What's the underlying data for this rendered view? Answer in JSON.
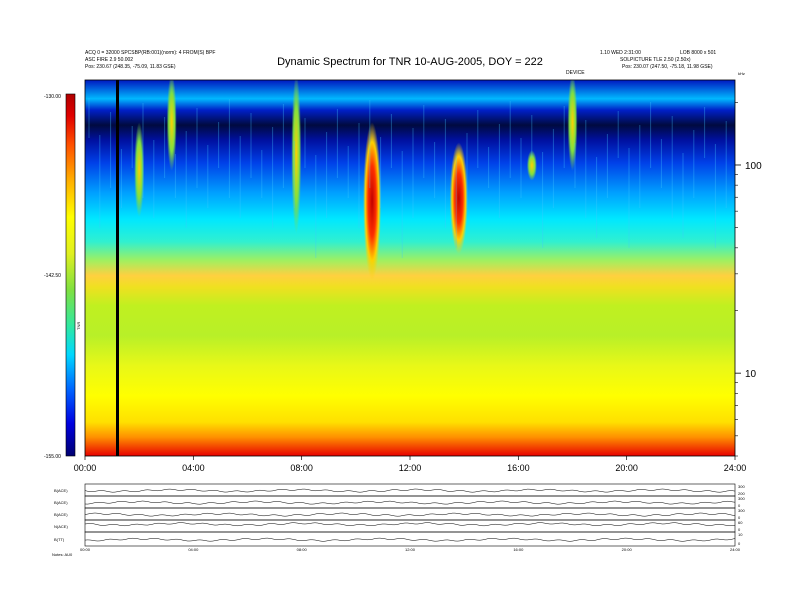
{
  "header": {
    "title": "Dynamic Spectrum for TNR 10-AUG-2005, DOY = 222",
    "left_line1": "ACQ 0 = 32000 SPCSBP(RB:001)(norm): 4 FROM(S) BPF",
    "left_line2": "ASC FIRE 2.9 50.002",
    "left_pos": "Pos:  230.67 (248.35, -75.09, 11.83 GSE)",
    "right_line1": "1.10 WED 2:31:00",
    "right_line2": "LOB 8000 x 501",
    "right_line3": "SOLPICTURE TLE 2.50 (2.50x)",
    "right_pos": "Pos:  230.07 (247.50, -75.18, 11.98 GSE)",
    "right_marker": "DEVICE",
    "freq_unit": "kHz"
  },
  "chart_data": [
    {
      "type": "heatmap",
      "title": "Dynamic Spectrum for TNR 10-AUG-2005, DOY = 222",
      "xlabel": "",
      "ylabel": "",
      "x_tick_labels": [
        "00:00",
        "04:00",
        "08:00",
        "12:00",
        "16:00",
        "20:00",
        "24:00"
      ],
      "x_range_hours": [
        0,
        24
      ],
      "y_scale": "log",
      "y_range_khz": [
        4,
        256
      ],
      "y_tick_labels": [
        "100",
        "10"
      ],
      "y_ticks_khz": [
        100,
        10
      ],
      "colorbar": {
        "label": "TNR",
        "tick_labels": [
          "-130.00",
          "-142.50",
          "-155.00"
        ],
        "min": -155.0,
        "max": -130.0,
        "colors": [
          "#000070",
          "#0000e0",
          "#0060ff",
          "#00d8ff",
          "#30e8a0",
          "#80e040",
          "#e0f020",
          "#ffff00",
          "#ffb000",
          "#ff5000",
          "#e00000",
          "#b00000"
        ]
      },
      "data_gap_hours": 1.2,
      "bursts": [
        {
          "t_hours": 10.6,
          "f_khz_range": [
            30,
            150
          ],
          "intensity": "high"
        },
        {
          "t_hours": 13.8,
          "f_khz_range": [
            40,
            120
          ],
          "intensity": "high"
        },
        {
          "t_hours": 2.0,
          "f_khz_range": [
            60,
            150
          ],
          "intensity": "medium"
        },
        {
          "t_hours": 3.2,
          "f_khz_range": [
            100,
            256
          ],
          "intensity": "medium"
        },
        {
          "t_hours": 7.8,
          "f_khz_range": [
            50,
            256
          ],
          "intensity": "medium"
        },
        {
          "t_hours": 16.5,
          "f_khz_range": [
            90,
            110
          ],
          "intensity": "medium"
        },
        {
          "t_hours": 18.0,
          "f_khz_range": [
            100,
            256
          ],
          "intensity": "medium"
        }
      ]
    },
    {
      "type": "line",
      "x_tick_labels": [
        "00:00",
        "04:00",
        "08:00",
        "12:00",
        "16:00",
        "20:00",
        "24:00"
      ],
      "panels": [
        {
          "label": "B(ACE)",
          "right_ticks": [
            "300",
            "200"
          ]
        },
        {
          "label": "B(ACE)",
          "right_ticks": [
            "300",
            "0"
          ]
        },
        {
          "label": "B(ACE)",
          "right_ticks": [
            "300",
            "0"
          ]
        },
        {
          "label": "N(ACE)",
          "right_ticks": [
            "60",
            "0"
          ]
        },
        {
          "label": "B(TT)",
          "right_ticks": [
            "10",
            "0"
          ]
        }
      ]
    }
  ],
  "footer": {
    "note": "Notes:  AU0"
  }
}
